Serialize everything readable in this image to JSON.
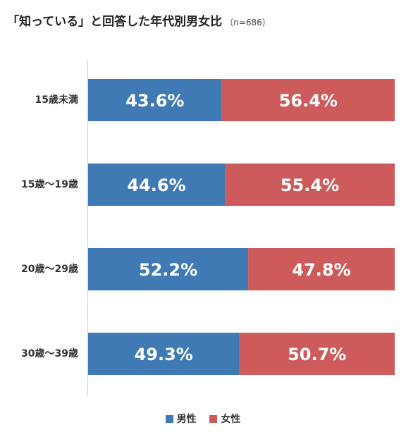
{
  "title": {
    "main": "「知っている」と回答した年代別男女比",
    "sub": "（n=686）"
  },
  "chart_data": {
    "type": "bar",
    "orientation": "horizontal",
    "stacked": true,
    "percent": true,
    "categories": [
      "15歳未満",
      "15歳～19歳",
      "20歳～29歳",
      "30歳～39歳"
    ],
    "series": [
      {
        "name": "男性",
        "color": "#3f7ab4",
        "values": [
          43.6,
          44.6,
          52.2,
          49.3
        ],
        "labels": [
          "43.6%",
          "44.6%",
          "52.2%",
          "49.3%"
        ]
      },
      {
        "name": "女性",
        "color": "#cd5b5b",
        "values": [
          56.4,
          55.4,
          47.8,
          50.7
        ],
        "labels": [
          "56.4%",
          "55.4%",
          "47.8%",
          "50.7%"
        ]
      }
    ],
    "xlim": [
      0,
      100
    ],
    "grid": false,
    "legend_position": "bottom"
  }
}
